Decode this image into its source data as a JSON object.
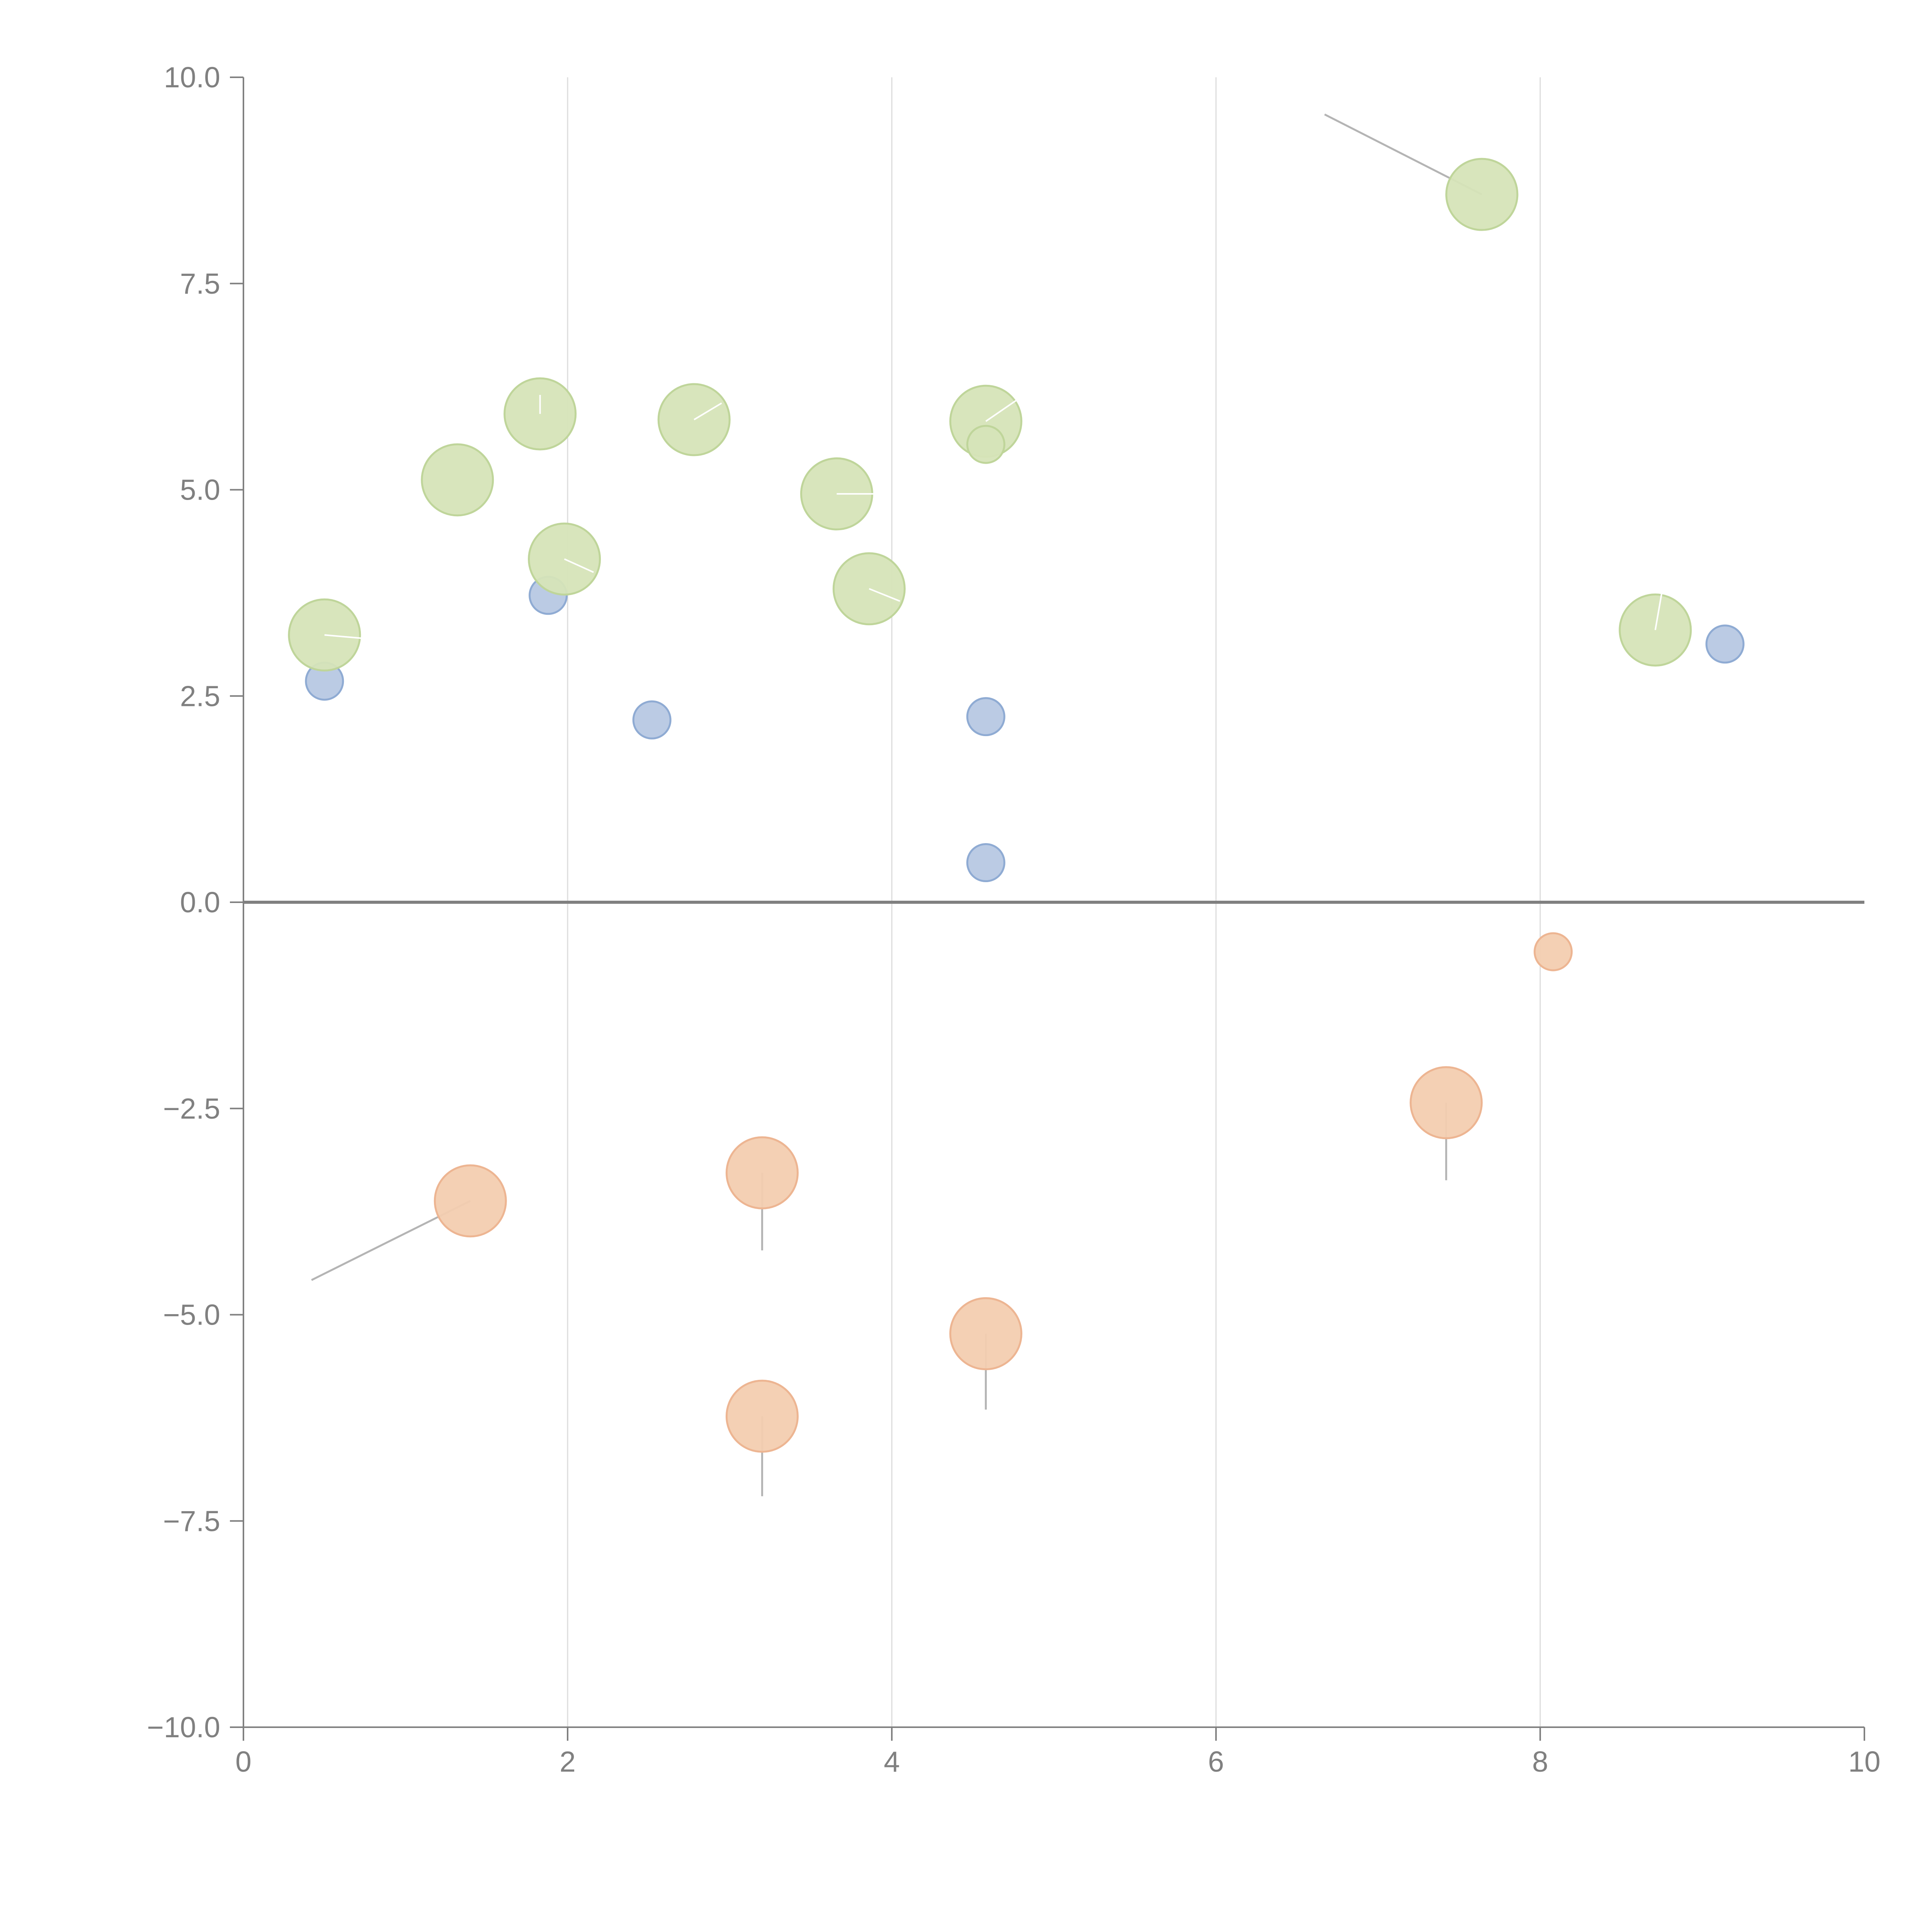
{
  "chart_data": {
    "type": "scatter",
    "title": "",
    "xlabel": "",
    "ylabel": "",
    "xlim": [
      0,
      10
    ],
    "ylim": [
      -10,
      10
    ],
    "x_ticks": [
      0,
      2,
      4,
      6,
      8,
      10
    ],
    "x_tick_labels": [
      "0",
      "2",
      "4",
      "6",
      "8",
      "10"
    ],
    "y_ticks": [
      10,
      7.5,
      5,
      2.5,
      0,
      -2.5,
      -5,
      -7.5,
      -10
    ],
    "y_tick_labels": [
      "10.0",
      "7.5",
      "5.0",
      "2.5",
      "0.0",
      "−2.5",
      "−5.0",
      "−7.5",
      "−10.0"
    ],
    "grid": "vertical",
    "zero_line": true,
    "colors": {
      "axis": "#808080",
      "grid": "#dcdcdc",
      "zero_line": "#808080",
      "connector": "#b4b4b4",
      "connector_light": "#ffffff"
    },
    "series": [
      {
        "name": "blue",
        "color": "#b7c8e3",
        "stroke": "#8fabd3",
        "size": "small",
        "points": [
          {
            "x": 0.5,
            "y": 2.68
          },
          {
            "x": 1.88,
            "y": 3.72
          },
          {
            "x": 2.52,
            "y": 2.21
          },
          {
            "x": 4.58,
            "y": 2.25
          },
          {
            "x": 4.58,
            "y": 0.48
          },
          {
            "x": 9.14,
            "y": 3.13
          }
        ]
      },
      {
        "name": "green",
        "color": "#d6e4b8",
        "stroke": "#bfd59a",
        "size": "large",
        "points": [
          {
            "x": 0.5,
            "y": 3.24,
            "lx": 0.73,
            "ly": 3.2,
            "light": true
          },
          {
            "x": 1.32,
            "y": 5.12
          },
          {
            "x": 1.83,
            "y": 5.92,
            "lx": 1.83,
            "ly": 6.15,
            "light": true
          },
          {
            "x": 1.98,
            "y": 4.16,
            "lx": 2.16,
            "ly": 4.0,
            "light": true
          },
          {
            "x": 2.78,
            "y": 5.85,
            "lx": 2.95,
            "ly": 6.05,
            "light": true
          },
          {
            "x": 3.66,
            "y": 4.95,
            "lx": 3.9,
            "ly": 4.95,
            "light": true
          },
          {
            "x": 3.86,
            "y": 3.8,
            "lx": 4.05,
            "ly": 3.65,
            "light": true
          },
          {
            "x": 4.58,
            "y": 5.83,
            "lx": 4.78,
            "ly": 6.1,
            "light": true
          },
          {
            "x": 4.58,
            "y": 5.55,
            "small": true
          },
          {
            "x": 7.64,
            "y": 8.58,
            "lx": 6.67,
            "ly": 9.55,
            "light": false
          },
          {
            "x": 8.71,
            "y": 3.3,
            "lx": 8.75,
            "ly": 3.75,
            "light": true
          }
        ]
      },
      {
        "name": "orange",
        "color": "#f3cdb0",
        "stroke": "#edb592",
        "size": "large",
        "points": [
          {
            "x": 1.4,
            "y": -3.62,
            "lx": 0.42,
            "ly": -4.58,
            "light": false
          },
          {
            "x": 3.2,
            "y": -3.28,
            "lx": 3.2,
            "ly": -4.22,
            "light": false
          },
          {
            "x": 3.2,
            "y": -6.23,
            "lx": 3.2,
            "ly": -7.2,
            "light": false
          },
          {
            "x": 4.58,
            "y": -5.23,
            "lx": 4.58,
            "ly": -6.15,
            "light": false
          },
          {
            "x": 7.42,
            "y": -2.43,
            "lx": 7.42,
            "ly": -3.37,
            "light": false
          },
          {
            "x": 8.08,
            "y": -0.6,
            "small": true
          }
        ]
      }
    ]
  }
}
